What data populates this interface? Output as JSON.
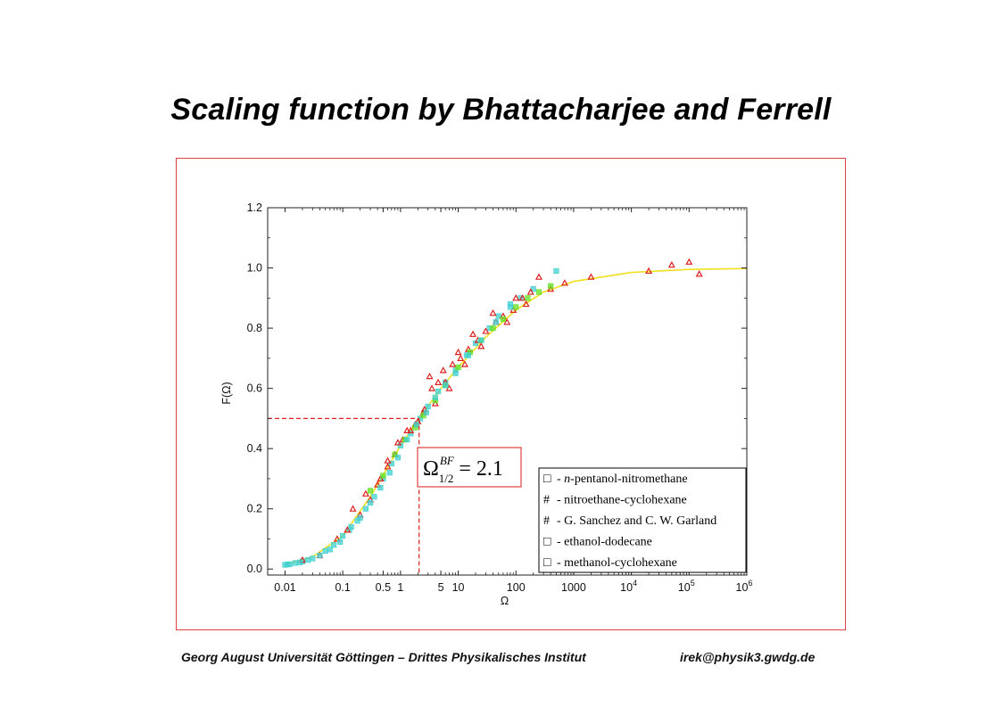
{
  "slide": {
    "title": "Scaling function by Bhattacharjee and Ferrell",
    "footer": "Georg August Universität Göttingen – Drittes Physikalisches Institut",
    "email": "irek@physik3.gwdg.de"
  },
  "colors": {
    "frame": "#e04040",
    "fit_curve": "#f0e020",
    "series_cyan": "#40d0d0",
    "series_red": "#e02020",
    "series_green": "#60e020",
    "guide": "#e02020"
  },
  "chart_data": {
    "type": "scatter",
    "xlabel": "Ω",
    "ylabel": "F(Ω)",
    "x_scale": "log",
    "xlim": [
      0.005,
      1000000
    ],
    "ylim": [
      -0.02,
      1.2
    ],
    "x_ticks": [
      {
        "value": 0.01,
        "label": "0.01"
      },
      {
        "value": 0.1,
        "label": "0.1"
      },
      {
        "value": 0.5,
        "label": "0.5"
      },
      {
        "value": 1,
        "label": "1"
      },
      {
        "value": 5,
        "label": "5"
      },
      {
        "value": 10,
        "label": "10"
      },
      {
        "value": 100,
        "label": "100"
      },
      {
        "value": 1000,
        "label": "1000"
      },
      {
        "value": 10000,
        "label": "10",
        "exp": "4"
      },
      {
        "value": 100000,
        "label": "10",
        "exp": "5"
      },
      {
        "value": 1000000,
        "label": "10",
        "exp": "6"
      }
    ],
    "y_ticks": [
      {
        "value": 0.0,
        "label": "0.0"
      },
      {
        "value": 0.2,
        "label": "0.2"
      },
      {
        "value": 0.4,
        "label": "0.4"
      },
      {
        "value": 0.6,
        "label": "0.6"
      },
      {
        "value": 0.8,
        "label": "0.8"
      },
      {
        "value": 1.0,
        "label": "1.0"
      },
      {
        "value": 1.2,
        "label": "1.2"
      }
    ],
    "half_point": {
      "x": 2.1,
      "y": 0.5
    },
    "annotation": {
      "symbol": "Ω",
      "superscript": "BF",
      "subscript": "1/2",
      "text": "= 2.1"
    },
    "fit_curve": {
      "x": [
        0.01,
        0.03,
        0.1,
        0.3,
        1,
        2.1,
        5,
        10,
        30,
        100,
        300,
        1000,
        10000,
        100000,
        1000000
      ],
      "y": [
        0.015,
        0.04,
        0.11,
        0.24,
        0.41,
        0.5,
        0.6,
        0.67,
        0.77,
        0.86,
        0.92,
        0.955,
        0.985,
        0.995,
        0.998
      ]
    },
    "legend": {
      "placement": "bottom-right",
      "entries": [
        {
          "marker": "□",
          "prefix": "- ",
          "italic": "n",
          "label": "-pentanol-nitromethane",
          "color": "#40d0d0"
        },
        {
          "marker": "#",
          "prefix": "- ",
          "italic": "",
          "label": "nitroethane-cyclohexane",
          "color": "#e02020"
        },
        {
          "marker": "#",
          "prefix": " - ",
          "italic": "",
          "label": "G. Sanchez and C. W. Garland",
          "color": "#e02020"
        },
        {
          "marker": "□",
          "prefix": "- ",
          "italic": "",
          "label": "ethanol-dodecane",
          "color": "#60e020"
        },
        {
          "marker": "□",
          "prefix": "- ",
          "italic": "",
          "label": "methanol-cyclohexane",
          "color": "#40d0d0"
        }
      ]
    },
    "series": [
      {
        "name": "n-pentanol-nitromethane",
        "marker": "square",
        "color": "#40d0d0",
        "x": [
          0.01,
          0.012,
          0.015,
          0.02,
          0.03,
          0.05,
          0.07,
          0.1,
          0.13,
          0.18,
          0.25,
          0.35,
          0.5,
          0.7,
          1.0,
          1.5,
          2.2,
          3,
          4.5,
          6,
          9,
          14,
          20,
          35,
          50,
          80,
          120,
          200,
          500
        ],
        "y": [
          0.014,
          0.016,
          0.02,
          0.025,
          0.035,
          0.06,
          0.08,
          0.11,
          0.13,
          0.16,
          0.2,
          0.24,
          0.3,
          0.35,
          0.41,
          0.45,
          0.5,
          0.54,
          0.59,
          0.62,
          0.66,
          0.71,
          0.75,
          0.8,
          0.84,
          0.88,
          0.9,
          0.93,
          0.99
        ]
      },
      {
        "name": "nitroethane-cyclohexane",
        "marker": "triangle",
        "color": "#e02020",
        "x": [
          0.02,
          0.04,
          0.08,
          0.12,
          0.2,
          0.3,
          0.45,
          0.6,
          0.8,
          1.1,
          1.5,
          2,
          2.6,
          3.5,
          4.5,
          6,
          8,
          11,
          15,
          22,
          30,
          45,
          60,
          90,
          130,
          180
        ],
        "y": [
          0.03,
          0.045,
          0.1,
          0.13,
          0.18,
          0.23,
          0.3,
          0.34,
          0.38,
          0.43,
          0.46,
          0.49,
          0.53,
          0.6,
          0.62,
          0.62,
          0.68,
          0.7,
          0.73,
          0.76,
          0.79,
          0.82,
          0.84,
          0.86,
          0.9,
          0.92
        ]
      },
      {
        "name": "G. Sanchez and C. W. Garland",
        "marker": "triangle",
        "color": "#e02020",
        "x": [
          0.15,
          0.25,
          0.4,
          0.6,
          0.9,
          1.3,
          1.8,
          2.5,
          3.2,
          4,
          5.5,
          7,
          10,
          13,
          18,
          25,
          40,
          70,
          100,
          150,
          250,
          400,
          700,
          2000,
          20000,
          50000,
          100000,
          150000
        ],
        "y": [
          0.2,
          0.25,
          0.28,
          0.36,
          0.42,
          0.46,
          0.48,
          0.52,
          0.64,
          0.55,
          0.66,
          0.6,
          0.72,
          0.68,
          0.78,
          0.74,
          0.85,
          0.82,
          0.9,
          0.88,
          0.97,
          0.93,
          0.95,
          0.97,
          0.99,
          1.01,
          1.02,
          0.98
        ]
      },
      {
        "name": "ethanol-dodecane",
        "marker": "square",
        "color": "#60e020",
        "x": [
          0.3,
          0.5,
          0.8,
          1.2,
          1.8,
          2.5,
          4,
          6,
          10,
          16,
          25,
          40,
          60,
          100,
          160,
          250,
          400
        ],
        "y": [
          0.26,
          0.31,
          0.38,
          0.43,
          0.47,
          0.51,
          0.56,
          0.61,
          0.67,
          0.72,
          0.76,
          0.8,
          0.83,
          0.87,
          0.9,
          0.92,
          0.94
        ]
      },
      {
        "name": "methanol-cyclohexane",
        "marker": "square",
        "color": "#40d0d0",
        "x": [
          0.011,
          0.018,
          0.025,
          0.04,
          0.06,
          0.09,
          0.14,
          0.2,
          0.3,
          0.45,
          0.65,
          0.9,
          1.3,
          1.9,
          2.8,
          4,
          6,
          9,
          15,
          25,
          45,
          80
        ],
        "y": [
          0.015,
          0.022,
          0.03,
          0.045,
          0.065,
          0.09,
          0.14,
          0.17,
          0.22,
          0.27,
          0.32,
          0.37,
          0.43,
          0.48,
          0.52,
          0.57,
          0.61,
          0.65,
          0.71,
          0.76,
          0.82,
          0.87
        ]
      }
    ]
  }
}
